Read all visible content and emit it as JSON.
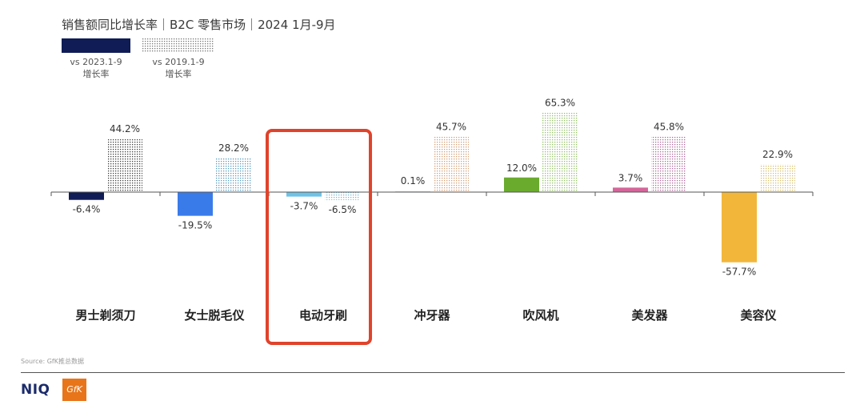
{
  "title": "销售额同比增长率｜B2C 零售市场｜2024 1月-9月",
  "legend": [
    {
      "label_line1": "vs 2023.1-9",
      "label_line2": "增长率",
      "style": "solid",
      "color": "#0f1c56"
    },
    {
      "label_line1": "vs 2019.1-9",
      "label_line2": "增长率",
      "style": "dotted",
      "color": "#888888"
    }
  ],
  "source": "Source: GfK推总数据",
  "logo_text": "NIQ",
  "logo_badge": "GfK",
  "highlighted_category": "电动牙刷",
  "chart_data": {
    "type": "bar",
    "categories": [
      "男士剃须刀",
      "女士脱毛仪",
      "电动牙刷",
      "冲牙器",
      "吹风机",
      "美发器",
      "美容仪"
    ],
    "series": [
      {
        "name": "vs 2023.1-9 增长率",
        "values": [
          -6.4,
          -19.5,
          -3.7,
          0.1,
          12.0,
          3.7,
          -57.7
        ],
        "labels": [
          "-6.4%",
          "-19.5%",
          "-3.7%",
          "0.1%",
          "12.0%",
          "3.7%",
          "-57.7%"
        ]
      },
      {
        "name": "vs 2019.1-9 增长率",
        "values": [
          44.2,
          28.2,
          -6.5,
          45.7,
          65.3,
          45.8,
          22.9
        ],
        "labels": [
          "44.2%",
          "28.2%",
          "-6.5%",
          "45.7%",
          "65.3%",
          "45.8%",
          "22.9%"
        ]
      }
    ],
    "colors_2023": [
      "#0f1c56",
      "#3a7bea",
      "#6cc3e6",
      "#b8e1ef",
      "#6aab2e",
      "#d4669a",
      "#f2b63a"
    ],
    "colors_2019": [
      "#404040",
      "#5b9bbf",
      "#7ab9d2",
      "#d2a07a",
      "#94c26a",
      "#b06a9a",
      "#d8c070"
    ],
    "ylim": [
      -70,
      80
    ]
  }
}
